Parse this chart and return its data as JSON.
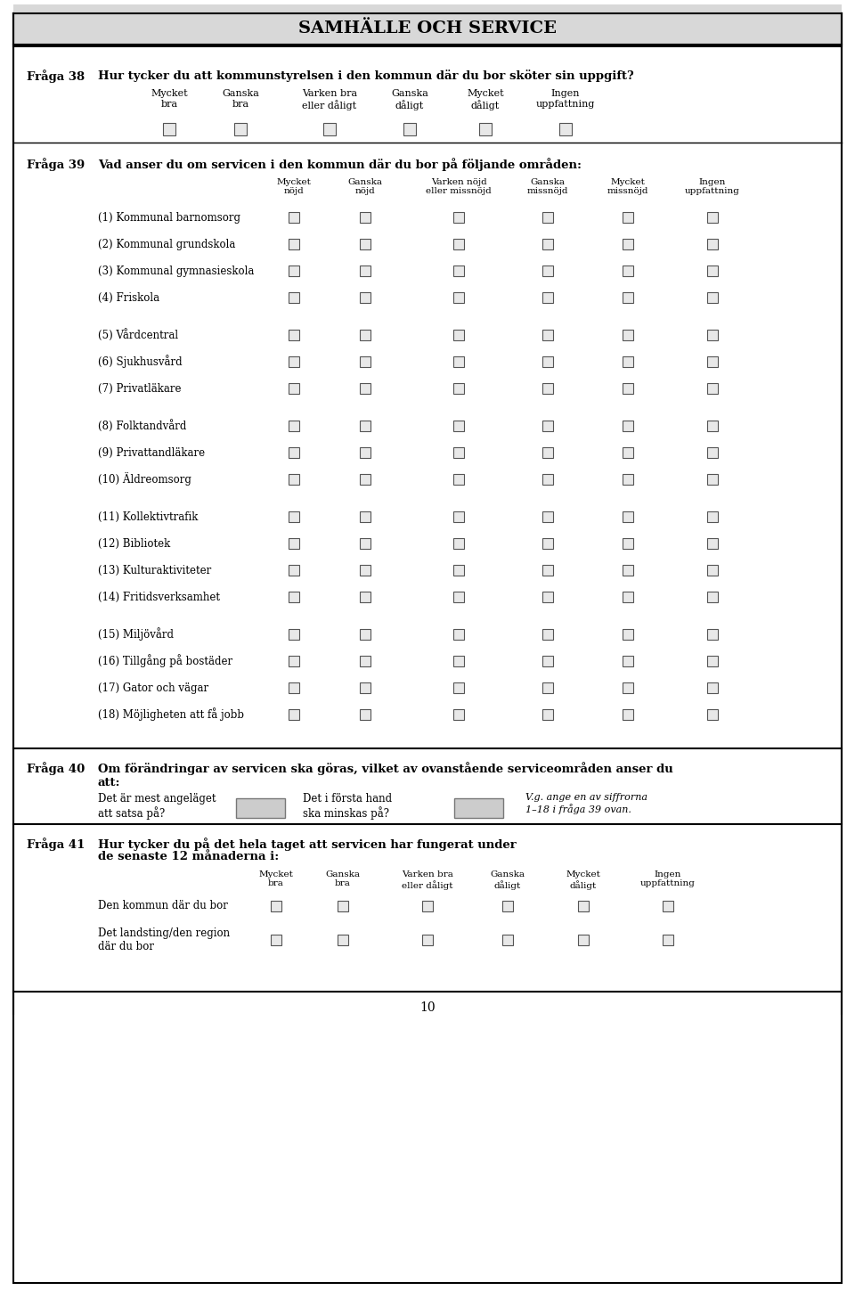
{
  "title": "SAMHÄLLE OCH SERVICE",
  "title_bg": "#e0e0e0",
  "page_bg": "#ffffff",
  "border_color": "#000000",
  "text_color": "#000000",
  "checkbox_color": "#cccccc",
  "checkbox_fill": "#e8e8e8",
  "fraga38": {
    "label": "Fråga 38",
    "question": "Hur tycker du att kommunstyrelsen i den kommun där du bor sköter sin uppgift?",
    "columns": [
      "Mycket\nbra",
      "Ganska\nbra",
      "Varken bra\neller dåligt",
      "Ganska\ndåligt",
      "Mycket\ndåligt",
      "Ingen\nuppfattning"
    ]
  },
  "fraga39": {
    "label": "Fråga 39",
    "question": "Vad anser du om servicen i den kommun där du bor på följande områden:",
    "columns": [
      "Mycket\nnöjd",
      "Ganska\nnöjd",
      "Varken nöjd\neller missnöjd",
      "Ganska\nmissnöjd",
      "Mycket\nmissnöjd",
      "Ingen\nuppfattning"
    ],
    "rows": [
      "(1) Kommunal barnomsorg",
      "(2) Kommunal grundskola",
      "(3) Kommunal gymnasieskola",
      "(4) Friskola",
      "",
      "(5) Vårdcentral",
      "(6) Sjukhusvård",
      "(7) Privatläkare",
      "",
      "(8) Folktandvård",
      "(9) Privattandläkare",
      "(10) Äldreomsorg",
      "",
      "(11) Kollektivtrafik",
      "(12) Bibliotek",
      "(13) Kulturaktiviteter",
      "(14) Fritidsverksamhet",
      "",
      "(15) Miljövård",
      "(16) Tillgång på bostäder",
      "(17) Gator och vägar",
      "(18) Möjligheten att få jobb"
    ]
  },
  "fraga40": {
    "label": "Fråga 40",
    "question": "Om förändringar av servicen ska göras, vilket av ovanstående serviceområden anser du\natt:",
    "line1": "Det är mest angeläget\natt satsa på?",
    "line2": "Det i första hand\nska minskas på?",
    "line3": "V.g. ange en av siffrorna\n1–18 i fråga 39 ovan."
  },
  "fraga41": {
    "label": "Fråga 41",
    "question": "Hur tycker du på det hela taget att servicen har fungerat under de senaste 12 månaderna i:",
    "columns": [
      "Mycket\nbra",
      "Ganska\nbra",
      "Varken bra\neller dåligt",
      "Ganska\ndåligt",
      "Mycket\ndåligt",
      "Ingen\nuppfattning"
    ],
    "rows": [
      "Den kommun där du bor",
      "Det landsting/den region\ndär du bor"
    ]
  },
  "page_number": "10"
}
